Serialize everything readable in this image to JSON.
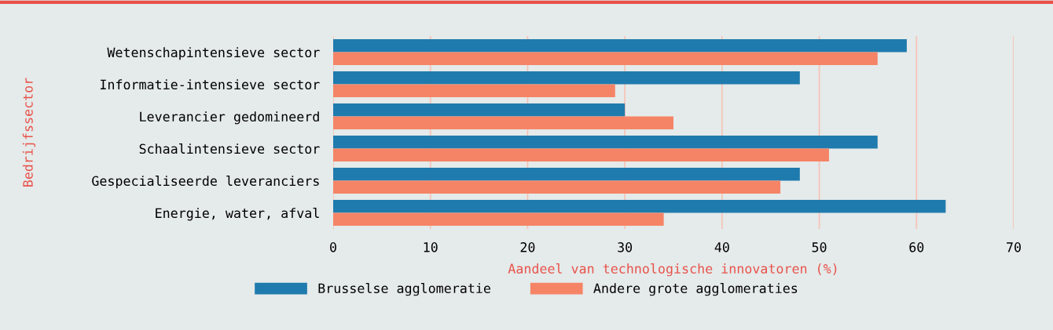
{
  "chart_data": {
    "type": "bar",
    "orientation": "horizontal",
    "xlabel": "Aandeel van technologische innovatoren (%)",
    "ylabel": "Bedrijfssector",
    "categories": [
      "Wetenschapintensieve sector",
      "Informatie-intensieve sector",
      "Leverancier gedomineerd",
      "Schaalintensieve sector",
      "Gespecialiseerde leveranciers",
      "Energie, water, afval"
    ],
    "series": [
      {
        "name": "Brusselse agglomeratie",
        "color": "#1f7bad",
        "values": [
          59,
          48,
          30,
          56,
          48,
          63
        ]
      },
      {
        "name": "Andere grote agglomeraties",
        "color": "#f58466",
        "values": [
          56,
          29,
          35,
          51,
          46,
          34
        ]
      }
    ],
    "xlim": [
      0,
      70
    ],
    "xticks": [
      0,
      10,
      20,
      30,
      40,
      50,
      60,
      70
    ],
    "grid": "x",
    "legend": "bottom"
  }
}
